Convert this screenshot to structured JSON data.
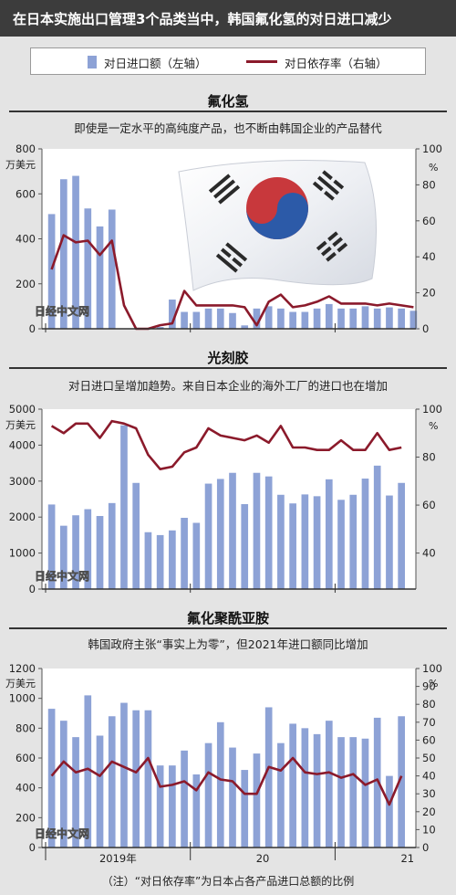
{
  "title": "在日本实施出口管理3个品类当中，韩国氟化氢的对日进口减少",
  "legend": {
    "bar_label": "对日进口额（左轴）",
    "line_label": "对日依存率（右轴）"
  },
  "colors": {
    "bar": "#8da2d6",
    "line": "#8b1a2b",
    "background": "#e4e4e4"
  },
  "watermark": "日经中文网",
  "footnote": "（注）“对日依存率”为日本占各产品进口总额的比例",
  "x_axis": {
    "labels": [
      "2019年",
      "20",
      "21"
    ]
  },
  "panels": [
    {
      "title": "氟化氢",
      "subtitle": "即使是一定水平的高纯度产品，也不断由韩国企业的产品替代",
      "left_unit": "万美元",
      "right_unit": "%",
      "left_ticks": [
        "0",
        "200",
        "400",
        "600",
        "800"
      ],
      "right_ticks": [
        "0",
        "20",
        "40",
        "60",
        "80",
        "100"
      ],
      "decoration": "korean-flag-image"
    },
    {
      "title": "光刻胶",
      "subtitle": "对日进口呈增加趋势。来自日本企业的海外工厂的进口也在增加",
      "left_unit": "万美元",
      "right_unit": "%",
      "left_ticks": [
        "0",
        "1000",
        "2000",
        "3000",
        "4000",
        "5000"
      ],
      "right_ticks": [
        "40",
        "60",
        "80",
        "100"
      ]
    },
    {
      "title": "氟化聚酰亚胺",
      "subtitle": "韩国政府主张“事实上为零”，但2021年进口额同比增加",
      "left_unit": "万美元",
      "right_unit": "%",
      "left_ticks": [
        "0",
        "200",
        "400",
        "600",
        "800",
        "1000",
        "1200"
      ],
      "right_ticks": [
        "0",
        "10",
        "20",
        "30",
        "40",
        "50",
        "60",
        "70",
        "80",
        "90",
        "100"
      ]
    }
  ],
  "chart_data": [
    {
      "type": "bar",
      "title": "氟化氢",
      "ylabel": "万美元",
      "y2label": "%",
      "ylim": [
        0,
        800
      ],
      "y2lim": [
        0,
        100
      ],
      "series": [
        {
          "axis": "left",
          "type": "bar",
          "values": [
            510,
            665,
            680,
            535,
            455,
            530,
            0,
            0,
            0,
            8,
            130,
            75,
            75,
            90,
            90,
            70,
            15,
            90,
            100,
            90,
            75,
            75,
            90,
            110,
            90,
            90,
            100,
            90,
            95,
            90,
            80
          ]
        },
        {
          "axis": "right",
          "type": "line",
          "values": [
            33,
            52,
            48,
            49,
            41,
            49,
            13,
            0,
            0,
            2,
            3,
            21,
            13,
            13,
            13,
            13,
            12,
            2,
            15,
            19,
            12,
            13,
            15,
            18,
            14,
            14,
            14,
            13,
            14,
            13,
            12
          ]
        }
      ]
    },
    {
      "type": "bar",
      "title": "光刻胶",
      "ylabel": "万美元",
      "y2label": "%",
      "ylim": [
        0,
        5000
      ],
      "y2lim": [
        25,
        100
      ],
      "right_ticks_shown": [
        40,
        60,
        80,
        100
      ],
      "series": [
        {
          "axis": "left",
          "type": "bar",
          "values": [
            2350,
            1760,
            2050,
            2220,
            2030,
            2390,
            4550,
            2950,
            1580,
            1500,
            1630,
            1980,
            1840,
            2930,
            3060,
            3230,
            2360,
            3230,
            3130,
            2620,
            2380,
            2630,
            2580,
            3050,
            2480,
            2620,
            3070,
            3430,
            2600,
            2950
          ]
        },
        {
          "axis": "right",
          "type": "line",
          "values": [
            93,
            90,
            94,
            94,
            88,
            95,
            94,
            92,
            81,
            75,
            76,
            82,
            84,
            92,
            89,
            88,
            87,
            89,
            86,
            93,
            84,
            84,
            83,
            83,
            87,
            83,
            83,
            90,
            83,
            84
          ]
        }
      ]
    },
    {
      "type": "bar",
      "title": "氟化聚酰亚胺",
      "ylabel": "万美元",
      "y2label": "%",
      "ylim": [
        0,
        1200
      ],
      "y2lim": [
        0,
        100
      ],
      "x_labels": [
        "2019年",
        "20",
        "21"
      ],
      "series": [
        {
          "axis": "left",
          "type": "bar",
          "values": [
            930,
            850,
            740,
            1020,
            750,
            880,
            970,
            920,
            920,
            550,
            550,
            650,
            490,
            700,
            840,
            670,
            520,
            630,
            940,
            700,
            830,
            800,
            760,
            850,
            740,
            740,
            730,
            870,
            480,
            880
          ]
        },
        {
          "axis": "right",
          "type": "line",
          "values": [
            40,
            48,
            42,
            44,
            40,
            48,
            45,
            42,
            50,
            34,
            35,
            37,
            32,
            42,
            38,
            37,
            30,
            30,
            45,
            43,
            50,
            42,
            41,
            42,
            39,
            41,
            35,
            38,
            24,
            40
          ]
        }
      ]
    }
  ]
}
